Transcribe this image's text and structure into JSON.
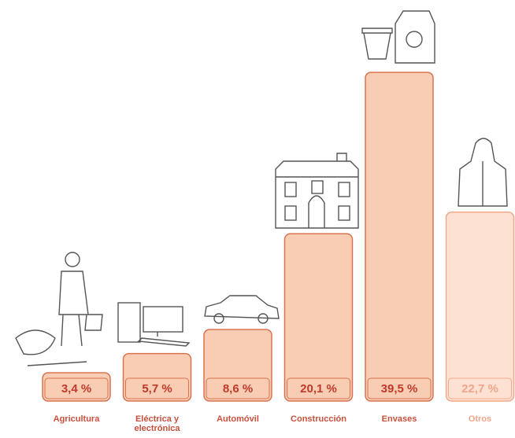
{
  "chart_data": {
    "type": "bar",
    "categories": [
      "Agricultura",
      "Eléctrica y electrónica",
      "Automóvil",
      "Construcción",
      "Envases",
      "Otros"
    ],
    "values": [
      3.4,
      5.7,
      8.6,
      20.1,
      39.5,
      22.7
    ],
    "value_labels": [
      "3,4 %",
      "5,7 %",
      "8,6 %",
      "20,1 %",
      "39,5 %",
      "22,7 %"
    ],
    "colors": [
      "#f9cdb3",
      "#f9cdb3",
      "#f9cdb3",
      "#f9cdb3",
      "#f9cdb3",
      "#fde2d4"
    ],
    "border_colors": [
      "#d9734f",
      "#d9734f",
      "#d9734f",
      "#d9734f",
      "#d9734f",
      "#f1a98e"
    ]
  }
}
